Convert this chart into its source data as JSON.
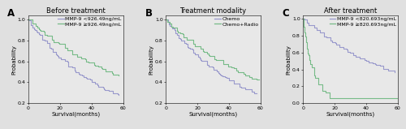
{
  "background_color": "#e0e0e0",
  "panel_bg": "#e8e8e8",
  "titles": [
    "Before treatment",
    "Treatment modality",
    "After treatment"
  ],
  "panel_labels": [
    "A",
    "B",
    "C"
  ],
  "xlabel": "Survival(months)",
  "ylabel": "Probability",
  "xlim": [
    0,
    60
  ],
  "xticks": [
    0,
    20,
    40,
    60
  ],
  "yticks_AB": [
    0.2,
    0.4,
    0.6,
    0.8,
    1.0
  ],
  "ylim_AB": [
    0.2,
    1.04
  ],
  "yticks_C": [
    0.0,
    0.2,
    0.4,
    0.6,
    0.8,
    1.0
  ],
  "ylim_C": [
    0.0,
    1.04
  ],
  "color_blue": "#9999cc",
  "color_green": "#77bb88",
  "legend_A": [
    "MMP-9 <926.49ng/mL",
    "MMP-9 ≥926.49ng/mL"
  ],
  "legend_B": [
    "Chemo",
    "Chemo+Radio"
  ],
  "legend_C": [
    "MMP-9 <820.693ng/mL",
    "MMP-9 ≥820.693ng/mL"
  ],
  "font_size_title": 6.0,
  "font_size_label": 5.0,
  "font_size_tick": 4.5,
  "font_size_legend": 4.5,
  "font_size_panel": 8.5,
  "lw": 0.8
}
